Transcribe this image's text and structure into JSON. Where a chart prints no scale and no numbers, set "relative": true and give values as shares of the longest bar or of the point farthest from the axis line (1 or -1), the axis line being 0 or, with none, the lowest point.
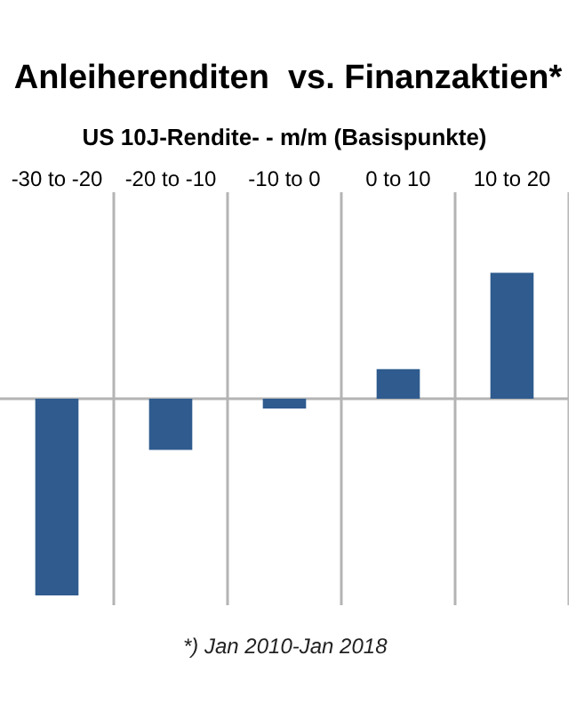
{
  "chart_data": {
    "type": "bar",
    "title": "Anleiherenditen  vs. Finanzaktien*",
    "xlabel": "US 10J-Rendite- - m/m (Basispunkte)",
    "categories": [
      "-30 to -20",
      "-20 to -10",
      "-10 to 0",
      "0 to 10",
      "10 to 20"
    ],
    "values": [
      -1,
      -0.26,
      -0.05,
      0.15,
      0.64
    ],
    "color": "#2f5b8e",
    "relative": true,
    "grid": "x",
    "annotations": [
      "*) Jan 2010-Jan 2018"
    ]
  }
}
